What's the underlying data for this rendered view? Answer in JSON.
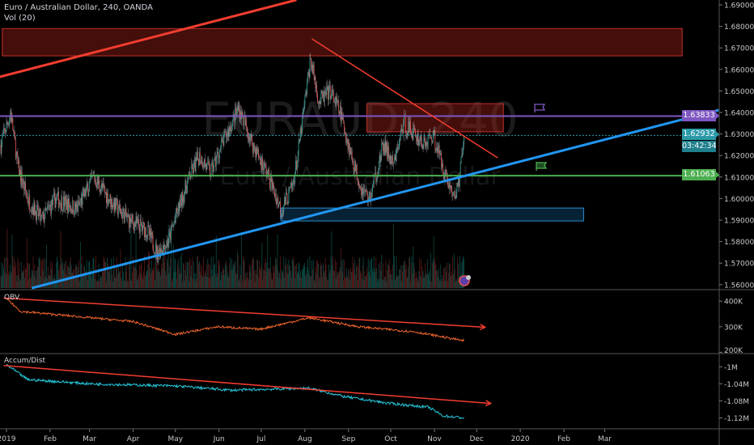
{
  "header": {
    "symbol_title": "Euro / Australian Dollar, 240, OANDA",
    "vol_label": "Vol (20)"
  },
  "watermark": {
    "ticker": "EURAUD, 240",
    "name": "Euro / Australian Dollar"
  },
  "colors": {
    "up": "#26a69a",
    "down": "#ef5350",
    "wick": "#b2b5be",
    "purple": "#7e57c2",
    "green": "#4caf50",
    "blue": "#2196f3",
    "red": "#f23d2f",
    "teal_tag": "#2b9aa8",
    "obv": "#f2662d",
    "ad": "#26c6da"
  },
  "chart_data": {
    "type": "candlestick",
    "title": "Euro / Australian Dollar, 240, OANDA",
    "x_unit": "days since 2019-01-01",
    "price_axis": {
      "range": [
        1.556,
        1.692
      ],
      "ticks": [
        "1.69000",
        "1.68000",
        "1.67000",
        "1.66000",
        "1.65000",
        "1.64000",
        "1.63000",
        "1.62000",
        "1.61000",
        "1.60000",
        "1.59000",
        "1.58000",
        "1.57000",
        "1.56000"
      ]
    },
    "time_axis": {
      "ticks": [
        {
          "day": 0,
          "label": "2019"
        },
        {
          "day": 31,
          "label": "Feb"
        },
        {
          "day": 59,
          "label": "Mar"
        },
        {
          "day": 90,
          "label": "Apr"
        },
        {
          "day": 120,
          "label": "May"
        },
        {
          "day": 151,
          "label": "Jun"
        },
        {
          "day": 181,
          "label": "Jul"
        },
        {
          "day": 212,
          "label": "Aug"
        },
        {
          "day": 243,
          "label": "Sep"
        },
        {
          "day": 273,
          "label": "Oct"
        },
        {
          "day": 304,
          "label": "Nov"
        },
        {
          "day": 334,
          "label": "Dec"
        },
        {
          "day": 365,
          "label": "2020"
        },
        {
          "day": 396,
          "label": "Feb"
        },
        {
          "day": 425,
          "label": "Mar"
        }
      ]
    },
    "price_path": [
      [
        -4,
        1.625
      ],
      [
        3,
        1.64
      ],
      [
        8,
        1.615
      ],
      [
        15,
        1.6
      ],
      [
        25,
        1.59
      ],
      [
        35,
        1.6
      ],
      [
        50,
        1.595
      ],
      [
        62,
        1.61
      ],
      [
        75,
        1.598
      ],
      [
        87,
        1.59
      ],
      [
        100,
        1.585
      ],
      [
        107,
        1.575
      ],
      [
        115,
        1.58
      ],
      [
        122,
        1.595
      ],
      [
        130,
        1.61
      ],
      [
        137,
        1.62
      ],
      [
        145,
        1.612
      ],
      [
        155,
        1.628
      ],
      [
        165,
        1.642
      ],
      [
        175,
        1.625
      ],
      [
        185,
        1.612
      ],
      [
        195,
        1.595
      ],
      [
        203,
        1.605
      ],
      [
        207,
        1.62
      ],
      [
        212,
        1.645
      ],
      [
        216,
        1.665
      ],
      [
        222,
        1.645
      ],
      [
        230,
        1.65
      ],
      [
        237,
        1.64
      ],
      [
        245,
        1.62
      ],
      [
        252,
        1.605
      ],
      [
        258,
        1.6
      ],
      [
        262,
        1.61
      ],
      [
        268,
        1.625
      ],
      [
        275,
        1.615
      ],
      [
        282,
        1.635
      ],
      [
        290,
        1.63
      ],
      [
        297,
        1.625
      ],
      [
        303,
        1.63
      ],
      [
        310,
        1.615
      ],
      [
        315,
        1.605
      ],
      [
        318,
        1.6
      ],
      [
        322,
        1.61
      ],
      [
        325,
        1.6293
      ]
    ],
    "price_labels": {
      "purple_level": "1.63833",
      "last_price": "1.62932",
      "countdown": "03:42:34",
      "green_level": "1.61063"
    },
    "levels": [
      {
        "name": "purple",
        "price": 1.63833
      },
      {
        "name": "last",
        "price": 1.62932
      },
      {
        "name": "green",
        "price": 1.61063
      }
    ],
    "zones": [
      {
        "name": "top-red-zone",
        "day_from": -3,
        "day_to": 480,
        "price_from": 1.6663,
        "price_to": 1.679,
        "color": "red"
      },
      {
        "name": "mid-red-zone",
        "day_from": 256,
        "day_to": 353,
        "price_from": 1.631,
        "price_to": 1.6441,
        "color": "red"
      },
      {
        "name": "blue-zone",
        "day_from": 195,
        "day_to": 410,
        "price_from": 1.5896,
        "price_to": 1.5956,
        "color": "blue"
      }
    ],
    "trendlines": [
      {
        "name": "top-red-trendline",
        "from": [
          -5,
          1.6565
        ],
        "to": [
          206,
          1.6923
        ],
        "color": "red",
        "width": 3
      },
      {
        "name": "desc-red-trendline",
        "from": [
          217,
          1.6742
        ],
        "to": [
          349,
          1.6189
        ],
        "color": "red",
        "width": 1.5
      },
      {
        "name": "blue-support-trendline",
        "from": [
          18,
          1.5584
        ],
        "to": [
          506,
          1.6411
        ],
        "color": "blue",
        "width": 3
      }
    ],
    "obv": {
      "label": "OBV",
      "ticks": [
        "400K",
        "300K",
        "200K"
      ],
      "range": [
        195,
        445
      ],
      "path": [
        [
          0,
          410
        ],
        [
          10,
          360
        ],
        [
          40,
          345
        ],
        [
          90,
          320
        ],
        [
          120,
          270
        ],
        [
          150,
          300
        ],
        [
          180,
          290
        ],
        [
          215,
          335
        ],
        [
          250,
          300
        ],
        [
          290,
          280
        ],
        [
          325,
          245
        ]
      ],
      "arrow": {
        "from": [
          -2,
          412
        ],
        "to": [
          340,
          298
        ]
      }
    },
    "accum_dist": {
      "label": "Accum/Dist",
      "ticks": [
        "-1M",
        "-1.04M",
        "-1.08M",
        "-1.12M"
      ],
      "range": [
        -1.1455,
        -0.969
      ],
      "path": [
        [
          0,
          -0.995
        ],
        [
          15,
          -1.03
        ],
        [
          60,
          -1.04
        ],
        [
          120,
          -1.045
        ],
        [
          160,
          -1.055
        ],
        [
          215,
          -1.05
        ],
        [
          240,
          -1.07
        ],
        [
          270,
          -1.085
        ],
        [
          300,
          -1.095
        ],
        [
          310,
          -1.115
        ],
        [
          325,
          -1.12
        ]
      ],
      "arrow": {
        "from": [
          -2,
          -0.997
        ],
        "to": [
          344,
          -1.086
        ]
      }
    }
  }
}
